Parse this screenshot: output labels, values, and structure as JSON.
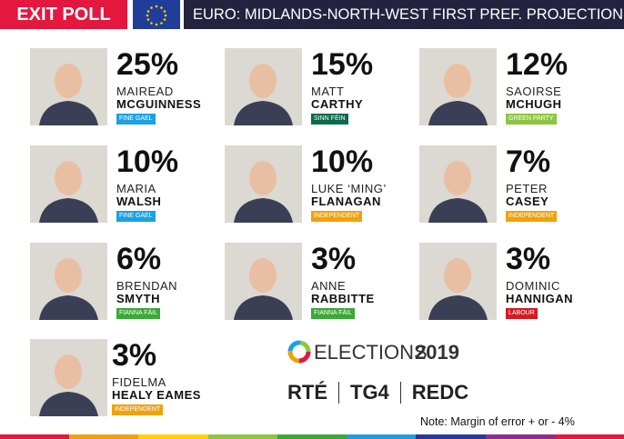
{
  "header": {
    "badge": "EXIT POLL",
    "title": "EURO: MIDLANDS-NORTH-WEST FIRST PREF. PROJECTION"
  },
  "candidates": [
    {
      "percent": "25%",
      "first": "MAIREAD",
      "last": "MCGUINNESS",
      "party": "FINE GAEL",
      "party_color": "#1ba1e2"
    },
    {
      "percent": "15%",
      "first": "MATT",
      "last": "CARTHY",
      "party": "SINN FÉIN",
      "party_color": "#0b6a4a"
    },
    {
      "percent": "12%",
      "first": "SAOIRSE",
      "last": "MCHUGH",
      "party": "GREEN PARTY",
      "party_color": "#8cc63e"
    },
    {
      "percent": "10%",
      "first": "MARIA",
      "last": "WALSH",
      "party": "FINE GAEL",
      "party_color": "#1ba1e2"
    },
    {
      "percent": "10%",
      "first": "LUKE ‘MING’",
      "last": "FLANAGAN",
      "party": "INDEPENDENT",
      "party_color": "#f0a20c"
    },
    {
      "percent": "7%",
      "first": "PETER",
      "last": "CASEY",
      "party": "INDEPENDENT",
      "party_color": "#f0a20c"
    },
    {
      "percent": "6%",
      "first": "BRENDAN",
      "last": "SMYTH",
      "party": "FIANNA FÁIL",
      "party_color": "#3aa935"
    },
    {
      "percent": "3%",
      "first": "ANNE",
      "last": "RABBITTE",
      "party": "FIANNA FÁIL",
      "party_color": "#3aa935"
    },
    {
      "percent": "3%",
      "first": "DOMINIC",
      "last": "HANNIGAN",
      "party": "LABOUR",
      "party_color": "#d7191f"
    },
    {
      "percent": "3%",
      "first": "FIDELMA",
      "last": "HEALY EAMES",
      "party": "INDEPENDENT",
      "party_color": "#f0a20c"
    }
  ],
  "logo": {
    "text": "ELECTIONS",
    "year": "2019"
  },
  "broadcasters": [
    "RTÉ",
    "TG4",
    "REDC"
  ],
  "note": "Note: Margin of error + or - 4%"
}
